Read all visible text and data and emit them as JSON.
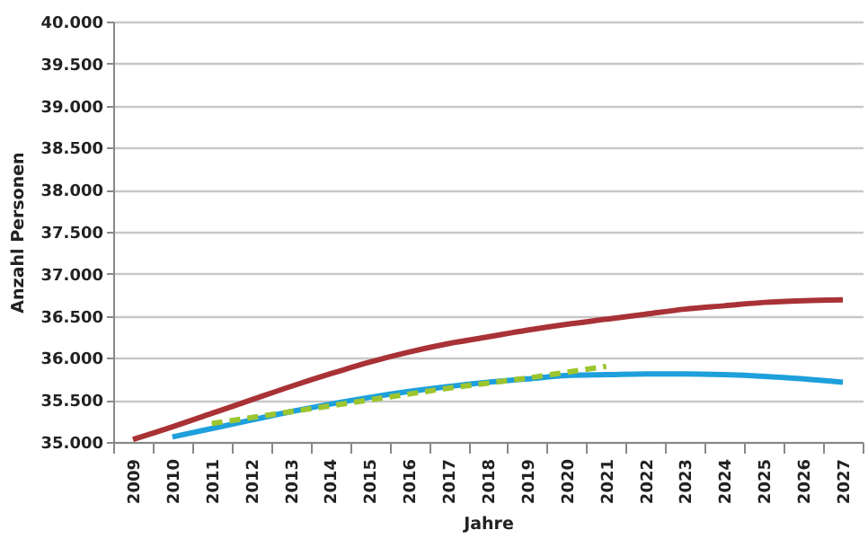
{
  "chart_data": {
    "type": "line",
    "xlabel": "Jahre",
    "ylabel": "Anzahl Personen",
    "categories": [
      "2009",
      "2010",
      "2011",
      "2012",
      "2013",
      "2014",
      "2015",
      "2016",
      "2017",
      "2018",
      "2019",
      "2020",
      "2021",
      "2022",
      "2023",
      "2024",
      "2025",
      "2026",
      "2027"
    ],
    "series": [
      {
        "color": "#a83236",
        "line_style": "solid",
        "values": [
          35030,
          35180,
          35340,
          35500,
          35660,
          35810,
          35950,
          36070,
          36170,
          36250,
          36330,
          36400,
          36460,
          36520,
          36580,
          36620,
          36660,
          36680,
          36690
        ]
      },
      {
        "color": "#1ea0dc",
        "line_style": "solid",
        "values": [
          null,
          35060,
          35160,
          35260,
          35360,
          35450,
          35530,
          35600,
          35660,
          35710,
          35750,
          35790,
          35800,
          35810,
          35810,
          35800,
          35780,
          35750,
          35710
        ]
      },
      {
        "color": "#9dc52e",
        "line_style": "dashed",
        "values": [
          null,
          null,
          35220,
          35290,
          35360,
          35430,
          35500,
          35570,
          35640,
          35700,
          35760,
          35830,
          35900,
          null,
          null,
          null,
          null,
          null,
          null
        ]
      }
    ],
    "ylim": [
      35000,
      40000
    ],
    "yticks": [
      {
        "value": 35000,
        "label": "35.000"
      },
      {
        "value": 35500,
        "label": "35.500"
      },
      {
        "value": 36000,
        "label": "36.000"
      },
      {
        "value": 36500,
        "label": "36.500"
      },
      {
        "value": 37000,
        "label": "37.000"
      },
      {
        "value": 37500,
        "label": "37.500"
      },
      {
        "value": 38000,
        "label": "38.000"
      },
      {
        "value": 38500,
        "label": "38.500"
      },
      {
        "value": 39000,
        "label": "39.000"
      },
      {
        "value": 39500,
        "label": "39.500"
      },
      {
        "value": 40000,
        "label": "40.000"
      }
    ],
    "grid": "y"
  }
}
